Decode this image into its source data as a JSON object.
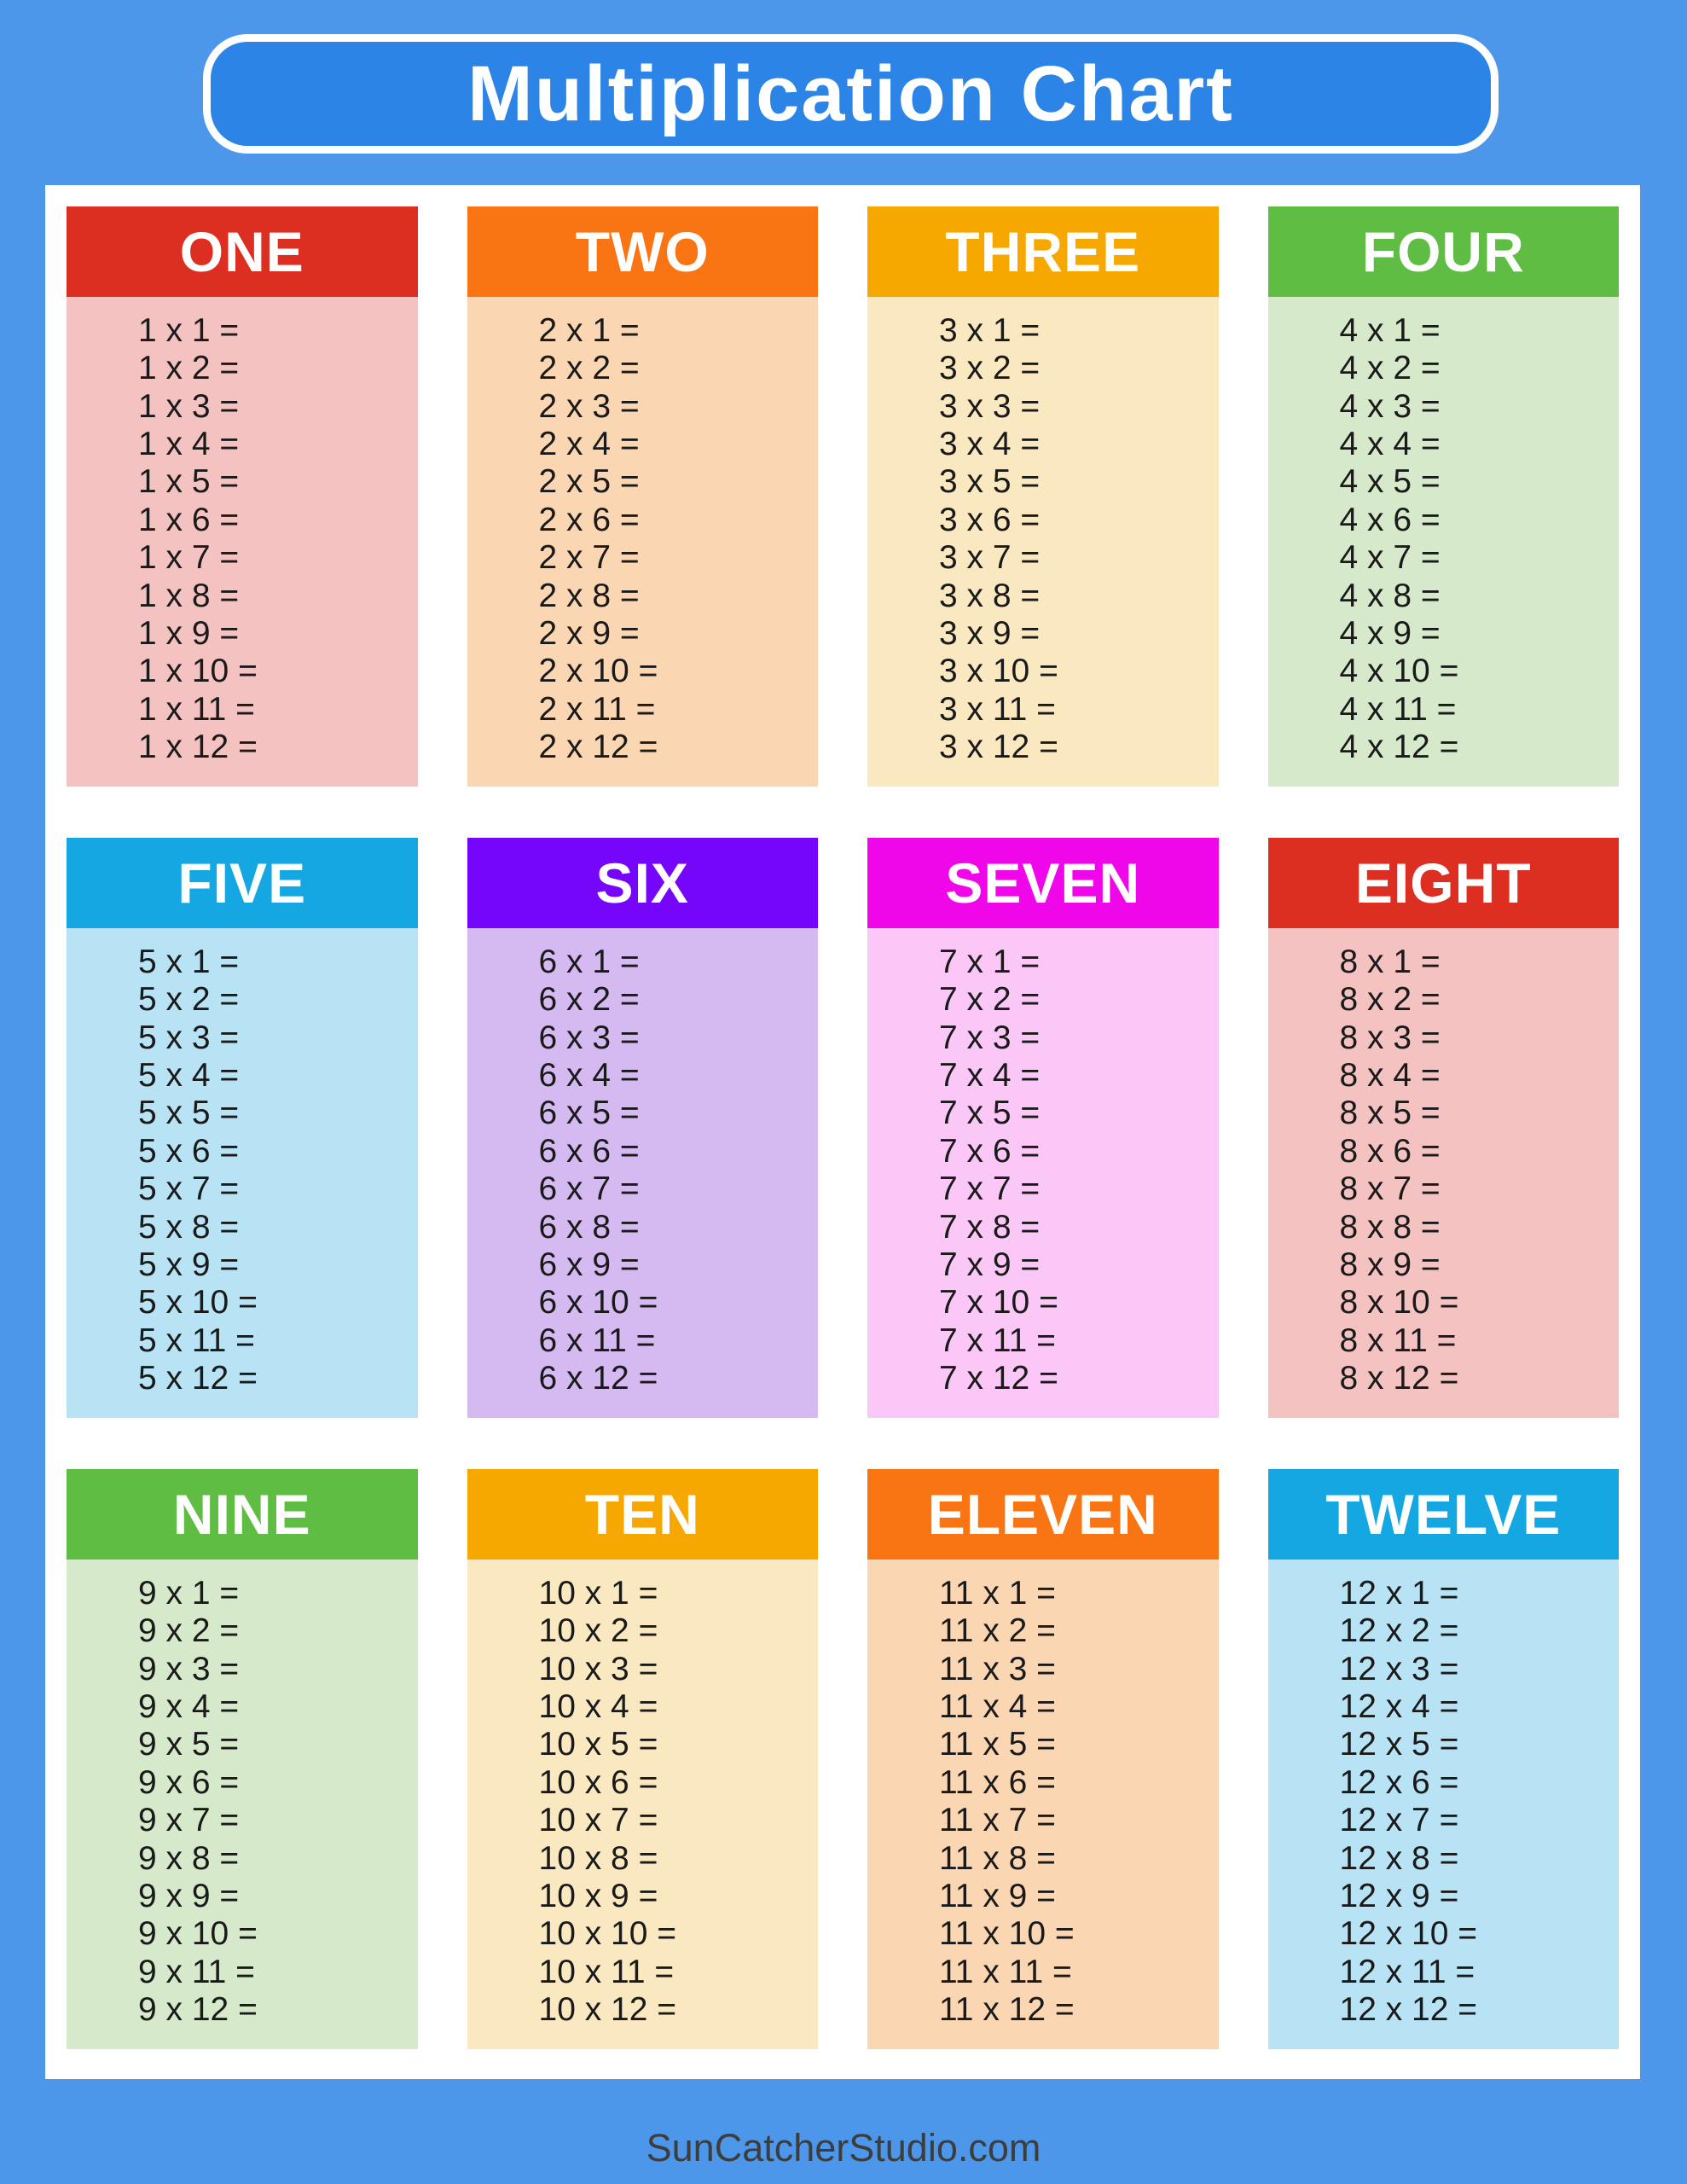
{
  "title": "Multiplication Chart",
  "footer": "SunCatcherStudio.com",
  "colors": {
    "page_background": "#4D97EB",
    "title_pill_fill": "#2B84E6",
    "title_pill_border": "#FFFFFF",
    "panel_background": "#FFFFFF",
    "row_text": "#1A1A1A",
    "footer_text": "#3D3D3D"
  },
  "cards": [
    {
      "title": "ONE",
      "header_color": "#DC2E21",
      "body_color": "#F5C2C2",
      "rows": [
        "1 x 1 =",
        "1 x 2 =",
        "1 x 3 =",
        "1 x 4 =",
        "1 x 5 =",
        "1 x 6 =",
        "1 x 7 =",
        "1 x 8 =",
        "1 x 9 =",
        "1 x 10 =",
        "1 x 11 =",
        "1 x 12 ="
      ]
    },
    {
      "title": "TWO",
      "header_color": "#F97514",
      "body_color": "#FBD6B3",
      "rows": [
        "2 x 1 =",
        "2 x 2 =",
        "2 x 3 =",
        "2 x 4 =",
        "2 x 5 =",
        "2 x 6 =",
        "2 x 7 =",
        "2 x 8 =",
        "2 x 9 =",
        "2 x 10 =",
        "2 x 11 =",
        "2 x 12 ="
      ]
    },
    {
      "title": "THREE",
      "header_color": "#F7A800",
      "body_color": "#FAE8C1",
      "rows": [
        "3 x 1 =",
        "3 x 2 =",
        "3 x 3 =",
        "3 x 4 =",
        "3 x 5 =",
        "3 x 6 =",
        "3 x 7 =",
        "3 x 8 =",
        "3 x 9 =",
        "3 x 10 =",
        "3 x 11 =",
        "3 x 12 ="
      ]
    },
    {
      "title": "FOUR",
      "header_color": "#5FBD43",
      "body_color": "#D6E9CB",
      "rows": [
        "4 x 1 =",
        "4 x 2 =",
        "4 x 3 =",
        "4 x 4 =",
        "4 x 5 =",
        "4 x 6 =",
        "4 x 7 =",
        "4 x 8 =",
        "4 x 9 =",
        "4 x 10 =",
        "4 x 11 =",
        "4 x 12 ="
      ]
    },
    {
      "title": "FIVE",
      "header_color": "#14A7E1",
      "body_color": "#B7E3F5",
      "rows": [
        "5 x 1 =",
        "5 x 2 =",
        "5 x 3 =",
        "5 x 4 =",
        "5 x 5 =",
        "5 x 6 =",
        "5 x 7 =",
        "5 x 8 =",
        "5 x 9 =",
        "5 x 10 =",
        "5 x 11 =",
        "5 x 12 ="
      ]
    },
    {
      "title": "SIX",
      "header_color": "#7506FA",
      "body_color": "#D5B9F1",
      "rows": [
        "6 x 1 =",
        "6 x 2 =",
        "6 x 3 =",
        "6 x 4 =",
        "6 x 5 =",
        "6 x 6 =",
        "6 x 7 =",
        "6 x 8 =",
        "6 x 9 =",
        "6 x 10 =",
        "6 x 11 =",
        "6 x 12 ="
      ]
    },
    {
      "title": "SEVEN",
      "header_color": "#EF06E9",
      "body_color": "#FAC7F7",
      "rows": [
        "7 x 1 =",
        "7 x 2 =",
        "7 x 3 =",
        "7 x 4 =",
        "7 x 5 =",
        "7 x 6 =",
        "7 x 7 =",
        "7 x 8 =",
        "7 x 9 =",
        "7 x 10 =",
        "7 x 11 =",
        "7 x 12 ="
      ]
    },
    {
      "title": "EIGHT",
      "header_color": "#DC2E21",
      "body_color": "#F5C2C2",
      "rows": [
        "8 x 1 =",
        "8 x 2 =",
        "8 x 3 =",
        "8 x 4 =",
        "8 x 5 =",
        "8 x 6 =",
        "8 x 7 =",
        "8 x 8 =",
        "8 x 9 =",
        "8 x 10 =",
        "8 x 11 =",
        "8 x 12 ="
      ]
    },
    {
      "title": "NINE",
      "header_color": "#5FBD43",
      "body_color": "#D6E9CB",
      "rows": [
        "9 x 1 =",
        "9 x 2 =",
        "9 x 3 =",
        "9 x 4 =",
        "9 x 5 =",
        "9 x 6 =",
        "9 x 7 =",
        "9 x 8 =",
        "9 x 9 =",
        "9 x 10 =",
        "9 x 11 =",
        "9 x 12 ="
      ]
    },
    {
      "title": "TEN",
      "header_color": "#F7A800",
      "body_color": "#FAE8C1",
      "rows": [
        "10 x 1 =",
        "10 x 2 =",
        "10 x 3 =",
        "10 x 4 =",
        "10 x 5 =",
        "10 x 6 =",
        "10 x 7 =",
        "10 x 8 =",
        "10 x 9 =",
        "10 x 10 =",
        "10 x 11 =",
        "10 x 12 ="
      ]
    },
    {
      "title": "ELEVEN",
      "header_color": "#F97514",
      "body_color": "#FBD6B3",
      "rows": [
        "11 x 1 =",
        "11 x 2 =",
        "11 x 3 =",
        "11 x 4 =",
        "11 x 5 =",
        "11 x 6 =",
        "11 x 7 =",
        "11 x 8 =",
        "11 x 9 =",
        "11 x 10 =",
        "11 x 11 =",
        "11 x 12 ="
      ]
    },
    {
      "title": "TWELVE",
      "header_color": "#14A7E1",
      "body_color": "#B7E3F5",
      "rows": [
        "12 x 1 =",
        "12 x 2 =",
        "12 x 3 =",
        "12 x 4 =",
        "12 x 5 =",
        "12 x 6 =",
        "12 x 7 =",
        "12 x 8 =",
        "12 x 9 =",
        "12 x 10 =",
        "12 x 11 =",
        "12 x 12 ="
      ]
    }
  ]
}
